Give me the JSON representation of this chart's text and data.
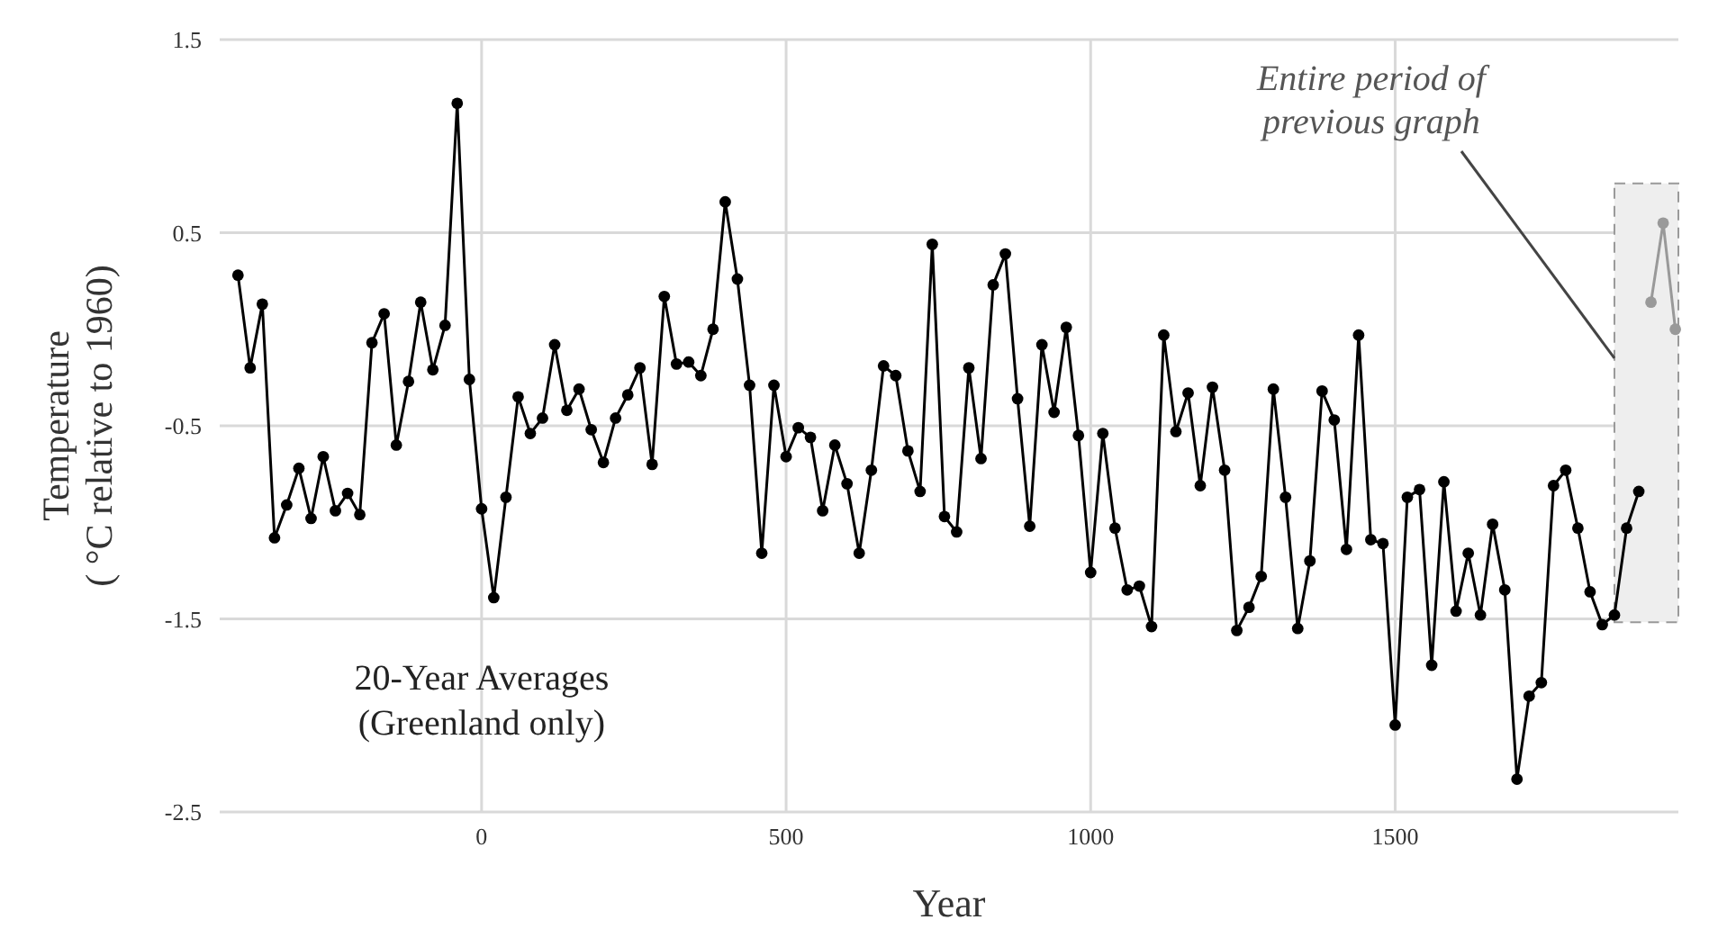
{
  "chart_data": {
    "type": "line",
    "xlabel": "Year",
    "ylabel": "Temperature ( °C relative to 1960)",
    "xlim": [
      -430,
      1965
    ],
    "ylim": [
      -2.5,
      1.5
    ],
    "xticks": [
      0,
      500,
      1000,
      1500
    ],
    "yticks": [
      1.5,
      0.5,
      -0.5,
      -1.5,
      -2.5
    ],
    "grid": true,
    "marker": "circle",
    "line_style": "solid",
    "bands": [
      {
        "axis": "x",
        "from": 1860,
        "to": 1965,
        "color": "#eeeeee"
      }
    ],
    "annotations": [
      "20-Year Averages (Greenland only)",
      {
        "text": "Entire period of previous graph",
        "x": 1860,
        "y": -0.15
      }
    ],
    "series": [
      {
        "color": "#999999",
        "x": [
          1920,
          1940,
          1960
        ],
        "values": [
          0.14,
          0.55,
          0.0
        ]
      },
      {
        "color": "#000000",
        "x": [
          -400,
          -380,
          -360,
          -340,
          -320,
          -300,
          -280,
          -260,
          -240,
          -220,
          -200,
          -180,
          -160,
          -140,
          -120,
          -100,
          -80,
          -60,
          -40,
          -20,
          0,
          20,
          40,
          60,
          80,
          100,
          120,
          140,
          160,
          180,
          200,
          220,
          240,
          260,
          280,
          300,
          320,
          340,
          360,
          380,
          400,
          420,
          440,
          460,
          480,
          500,
          520,
          540,
          560,
          580,
          600,
          620,
          640,
          660,
          680,
          700,
          720,
          740,
          760,
          780,
          800,
          820,
          840,
          860,
          880,
          900,
          920,
          940,
          960,
          980,
          1000,
          1020,
          1040,
          1060,
          1080,
          1100,
          1120,
          1140,
          1160,
          1180,
          1200,
          1220,
          1240,
          1260,
          1280,
          1300,
          1320,
          1340,
          1360,
          1380,
          1400,
          1420,
          1440,
          1460,
          1480,
          1500,
          1520,
          1540,
          1560,
          1580,
          1600,
          1620,
          1640,
          1660,
          1680,
          1700,
          1720,
          1740,
          1760,
          1780,
          1800,
          1820,
          1840,
          1860,
          1880,
          1900
        ],
        "values": [
          0.28,
          -0.2,
          0.13,
          -1.08,
          -0.91,
          -0.72,
          -0.98,
          -0.66,
          -0.94,
          -0.85,
          -0.96,
          -0.07,
          0.08,
          -0.6,
          -0.27,
          0.14,
          -0.21,
          0.02,
          1.17,
          -0.26,
          -0.93,
          -1.39,
          -0.87,
          -0.35,
          -0.54,
          -0.46,
          -0.08,
          -0.42,
          -0.31,
          -0.52,
          -0.69,
          -0.46,
          -0.34,
          -0.2,
          -0.7,
          0.17,
          -0.18,
          -0.17,
          -0.24,
          0.0,
          0.66,
          0.26,
          -0.29,
          -1.16,
          -0.29,
          -0.66,
          -0.51,
          -0.56,
          -0.94,
          -0.6,
          -0.8,
          -1.16,
          -0.73,
          -0.19,
          -0.24,
          -0.63,
          -0.84,
          0.44,
          -0.97,
          -1.05,
          -0.2,
          -0.67,
          0.23,
          0.39,
          -0.36,
          -1.02,
          -0.08,
          -0.43,
          0.01,
          -0.55,
          -1.26,
          -0.54,
          -1.03,
          -1.35,
          -1.33,
          -1.54,
          -0.03,
          -0.53,
          -0.33,
          -0.81,
          -0.3,
          -0.73,
          -1.56,
          -1.44,
          -1.28,
          -0.31,
          -0.87,
          -1.55,
          -1.2,
          -0.32,
          -0.47,
          -1.14,
          -0.03,
          -1.09,
          -1.11,
          -2.05,
          -0.87,
          -0.83,
          -1.74,
          -0.79,
          -1.46,
          -1.16,
          -1.48,
          -1.01,
          -1.35,
          -2.33,
          -1.9,
          -1.83,
          -0.81,
          -0.73,
          -1.03,
          -1.36,
          -1.53,
          -1.48,
          -1.03,
          -0.84
        ]
      }
    ]
  }
}
